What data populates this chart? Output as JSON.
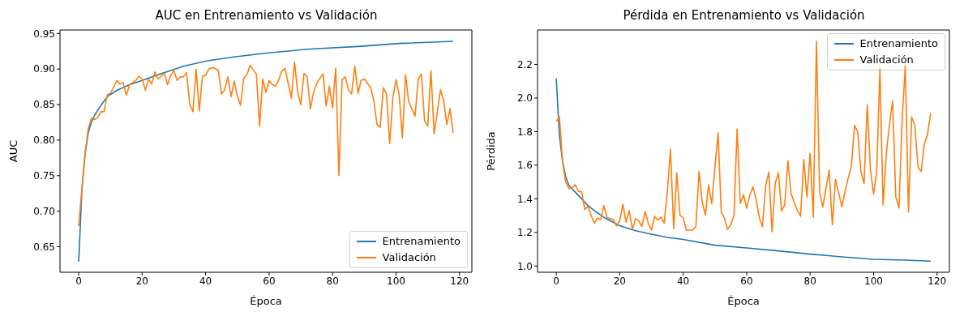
{
  "chart_data": [
    {
      "type": "line",
      "title": "AUC en Entrenamiento vs Validación",
      "xlabel": "Época",
      "ylabel": "AUC",
      "xlim": [
        -5.9,
        123.9
      ],
      "xticks": [
        0,
        20,
        40,
        60,
        80,
        100,
        120
      ],
      "ylim": [
        0.614,
        0.955
      ],
      "yticks": [
        {
          "value": 0.65,
          "label": "0.65"
        },
        {
          "value": 0.7,
          "label": "0.70"
        },
        {
          "value": 0.75,
          "label": "0.75"
        },
        {
          "value": 0.8,
          "label": "0.80"
        },
        {
          "value": 0.85,
          "label": "0.85"
        },
        {
          "value": 0.9,
          "label": "0.90"
        },
        {
          "value": 0.95,
          "label": "0.95"
        }
      ],
      "legend": "bottom right",
      "series": [
        {
          "name": "Entrenamiento",
          "color": "#1f77b4",
          "x": [
            0,
            1,
            2,
            3,
            4,
            5,
            7,
            9,
            12,
            16,
            20,
            25,
            33,
            41,
            49,
            58,
            72,
            89,
            101,
            118
          ],
          "values": [
            0.629,
            0.73,
            0.78,
            0.81,
            0.825,
            0.835,
            0.849,
            0.861,
            0.87,
            0.878,
            0.884,
            0.892,
            0.904,
            0.912,
            0.917,
            0.922,
            0.928,
            0.932,
            0.936,
            0.939
          ]
        },
        {
          "name": "Validación",
          "color": "#ff7f0e",
          "x": [
            0,
            1,
            2,
            3,
            4,
            5,
            6,
            7,
            8,
            9,
            10,
            11,
            12,
            13,
            14,
            15,
            16,
            17,
            18,
            19,
            20,
            21,
            22,
            23,
            24,
            25,
            26,
            27,
            28,
            29,
            30,
            31,
            32,
            33,
            34,
            35,
            36,
            37,
            38,
            39,
            40,
            41,
            42,
            43,
            44,
            45,
            46,
            47,
            48,
            49,
            50,
            51,
            52,
            53,
            54,
            55,
            56,
            57,
            58,
            59,
            60,
            61,
            62,
            63,
            64,
            65,
            66,
            67,
            68,
            69,
            70,
            71,
            72,
            73,
            74,
            75,
            76,
            77,
            78,
            79,
            80,
            81,
            82,
            83,
            84,
            85,
            86,
            87,
            88,
            89,
            90,
            91,
            92,
            93,
            94,
            95,
            96,
            97,
            98,
            99,
            100,
            101,
            102,
            103,
            104,
            105,
            106,
            107,
            108,
            109,
            110,
            111,
            112,
            113,
            114,
            115,
            116,
            117,
            118
          ],
          "values": [
            0.679,
            0.732,
            0.781,
            0.816,
            0.831,
            0.829,
            0.832,
            0.84,
            0.84,
            0.864,
            0.866,
            0.874,
            0.884,
            0.879,
            0.881,
            0.863,
            0.878,
            0.881,
            0.884,
            0.89,
            0.886,
            0.87,
            0.886,
            0.879,
            0.896,
            0.886,
            0.89,
            0.894,
            0.878,
            0.891,
            0.898,
            0.884,
            0.889,
            0.889,
            0.895,
            0.85,
            0.84,
            0.9,
            0.841,
            0.89,
            0.891,
            0.9,
            0.902,
            0.901,
            0.898,
            0.865,
            0.871,
            0.889,
            0.861,
            0.883,
            0.862,
            0.849,
            0.887,
            0.892,
            0.905,
            0.899,
            0.893,
            0.82,
            0.886,
            0.867,
            0.884,
            0.878,
            0.876,
            0.884,
            0.897,
            0.901,
            0.88,
            0.859,
            0.91,
            0.867,
            0.85,
            0.894,
            0.889,
            0.844,
            0.867,
            0.88,
            0.887,
            0.893,
            0.848,
            0.876,
            0.845,
            0.901,
            0.75,
            0.885,
            0.889,
            0.871,
            0.865,
            0.904,
            0.866,
            0.884,
            0.886,
            0.88,
            0.874,
            0.856,
            0.822,
            0.818,
            0.874,
            0.865,
            0.795,
            0.859,
            0.885,
            0.863,
            0.803,
            0.892,
            0.854,
            0.844,
            0.834,
            0.886,
            0.893,
            0.827,
            0.82,
            0.898,
            0.809,
            0.839,
            0.871,
            0.856,
            0.822,
            0.844,
            0.81
          ]
        }
      ]
    },
    {
      "type": "line",
      "title": "Pérdida en Entrenamiento vs Validación",
      "xlabel": "Época",
      "ylabel": "Pérdida",
      "xlim": [
        -5.9,
        123.9
      ],
      "xticks": [
        0,
        20,
        40,
        60,
        80,
        100,
        120
      ],
      "ylim": [
        0.963,
        2.405
      ],
      "yticks": [
        {
          "value": 1,
          "label": "1.0"
        },
        {
          "value": 1.2,
          "label": "1.2"
        },
        {
          "value": 1.4,
          "label": "1.4"
        },
        {
          "value": 1.6,
          "label": "1.6"
        },
        {
          "value": 1.8,
          "label": "1.8"
        },
        {
          "value": 2,
          "label": "2.0"
        },
        {
          "value": 2.2,
          "label": "2.2"
        }
      ],
      "legend": "top right",
      "series": [
        {
          "name": "Entrenamiento",
          "color": "#1f77b4",
          "x": [
            0,
            1,
            2,
            3,
            4,
            5,
            6,
            8,
            10,
            12,
            15,
            20,
            25,
            30,
            35,
            40,
            50,
            60,
            70,
            80,
            90,
            100,
            110,
            118
          ],
          "values": [
            2.117,
            1.777,
            1.62,
            1.53,
            1.48,
            1.46,
            1.44,
            1.4,
            1.36,
            1.33,
            1.29,
            1.24,
            1.21,
            1.19,
            1.17,
            1.158,
            1.124,
            1.108,
            1.09,
            1.071,
            1.055,
            1.04,
            1.035,
            1.029
          ]
        },
        {
          "name": "Validación",
          "color": "#ff7f0e",
          "x": [
            0,
            1,
            2,
            3,
            4,
            5,
            6,
            7,
            8,
            9,
            10,
            11,
            12,
            13,
            14,
            15,
            16,
            17,
            18,
            19,
            20,
            21,
            22,
            23,
            24,
            25,
            26,
            27,
            28,
            29,
            30,
            31,
            32,
            33,
            34,
            35,
            36,
            37,
            38,
            39,
            40,
            41,
            42,
            43,
            44,
            45,
            46,
            47,
            48,
            49,
            50,
            51,
            52,
            53,
            54,
            55,
            56,
            57,
            58,
            59,
            60,
            61,
            62,
            63,
            64,
            65,
            66,
            67,
            68,
            69,
            70,
            71,
            72,
            73,
            74,
            75,
            76,
            77,
            78,
            79,
            80,
            81,
            82,
            83,
            84,
            85,
            86,
            87,
            88,
            89,
            90,
            91,
            92,
            93,
            94,
            95,
            96,
            97,
            98,
            99,
            100,
            101,
            102,
            103,
            104,
            105,
            106,
            107,
            108,
            109,
            110,
            111,
            112,
            113,
            114,
            115,
            116,
            117,
            118
          ],
          "values": [
            1.861,
            1.887,
            1.618,
            1.499,
            1.46,
            1.468,
            1.483,
            1.444,
            1.441,
            1.336,
            1.357,
            1.301,
            1.254,
            1.285,
            1.277,
            1.36,
            1.288,
            1.282,
            1.277,
            1.238,
            1.269,
            1.368,
            1.261,
            1.33,
            1.219,
            1.282,
            1.269,
            1.235,
            1.325,
            1.254,
            1.214,
            1.296,
            1.273,
            1.292,
            1.254,
            1.444,
            1.694,
            1.222,
            1.555,
            1.301,
            1.288,
            1.214,
            1.214,
            1.214,
            1.235,
            1.563,
            1.38,
            1.304,
            1.483,
            1.372,
            1.586,
            1.792,
            1.32,
            1.285,
            1.219,
            1.246,
            1.301,
            1.816,
            1.372,
            1.425,
            1.345,
            1.42,
            1.472,
            1.396,
            1.285,
            1.235,
            1.479,
            1.558,
            1.203,
            1.491,
            1.555,
            1.328,
            1.365,
            1.626,
            1.431,
            1.38,
            1.33,
            1.296,
            1.634,
            1.409,
            1.67,
            1.29,
            2.339,
            1.436,
            1.352,
            1.46,
            1.571,
            1.246,
            1.515,
            1.436,
            1.353,
            1.444,
            1.523,
            1.594,
            1.837,
            1.8,
            1.563,
            1.491,
            1.959,
            1.578,
            1.428,
            1.563,
            2.173,
            1.365,
            1.666,
            1.84,
            1.983,
            1.412,
            1.345,
            1.872,
            2.189,
            1.32,
            1.887,
            1.837,
            1.59,
            1.563,
            1.726,
            1.784,
            1.911
          ]
        }
      ]
    }
  ]
}
